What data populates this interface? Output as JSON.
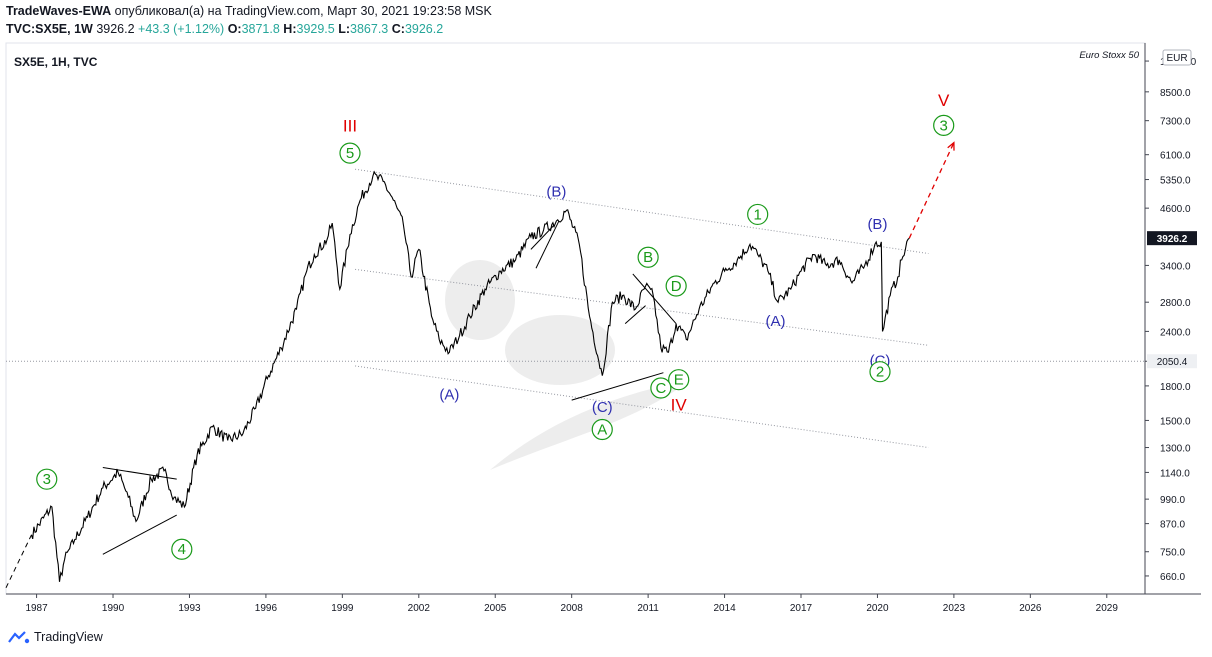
{
  "header": {
    "author": "TradeWaves-EWA",
    "published_text": "опубликовал(а) на TradingView.com, Март 30, 2021 19:23:58 MSK",
    "symbol": "TVC:SX5E, 1W",
    "last": "3926.2",
    "change": "+43.3 (+1.12%)",
    "o_label": "O:",
    "o_value": "3871.8",
    "h_label": "H:",
    "h_value": "3929.5",
    "l_label": "L:",
    "l_value": "3867.3",
    "c_label": "C:",
    "c_value": "3926.2"
  },
  "footer": {
    "brand": "TradingView"
  },
  "colors": {
    "up": "#26a69a",
    "wave_red": "#e00000",
    "wave_green": "#1a9a1a",
    "wave_blue": "#3030b0"
  },
  "chart_data": {
    "type": "line",
    "symbol_label": "SX5E, 1H, TVC",
    "index_name": "Euro Stoxx 50",
    "currency": "EUR",
    "y_scale": "log",
    "ylim": [
      600,
      11000
    ],
    "xlim": [
      1985.8,
      2030.5
    ],
    "y_ticks": [
      "660.0",
      "750.0",
      "870.0",
      "990.0",
      "1140.0",
      "1300.0",
      "1500.0",
      "1800.0",
      "2050.0",
      "2400.0",
      "2800.0",
      "3400.0",
      "3926.2",
      "4600.0",
      "5350.0",
      "6100.0",
      "7300.0",
      "8500.0",
      "10000.0"
    ],
    "x_ticks": [
      "1987",
      "1990",
      "1993",
      "1996",
      "1999",
      "2002",
      "2005",
      "2008",
      "2011",
      "2014",
      "2017",
      "2020",
      "2023",
      "2026",
      "2029"
    ],
    "price_labels": [
      {
        "value": 3926.2,
        "text": "3926.2",
        "style": "dark"
      },
      {
        "value": 2050.4,
        "text": "2050.4",
        "style": "light"
      }
    ],
    "series": [
      {
        "x": [
          1986.8,
          1987.6,
          1987.9,
          1988.1,
          1988.5,
          1989.0,
          1989.6,
          1990.2,
          1990.6,
          1990.9,
          1991.5,
          1992.0,
          1992.4,
          1992.8,
          1993.3,
          1993.9,
          1994.5,
          1995.1,
          1995.6,
          1996.1,
          1996.6,
          1997.2,
          1997.6,
          1997.9,
          1998.4,
          1998.6,
          1998.9,
          1999.3,
          1999.7,
          2000.2,
          2000.6,
          2001.0,
          2001.4,
          2001.7,
          2002.0,
          2002.5,
          2002.8,
          2003.2,
          2003.6,
          2004.0,
          2004.6,
          2005.2,
          2005.8,
          2006.4,
          2006.9,
          2007.4,
          2007.8,
          2008.3,
          2008.7,
          2009.2,
          2009.6,
          2010.0,
          2010.5,
          2010.9,
          2011.2,
          2011.5,
          2011.8,
          2012.1,
          2012.5,
          2013.0,
          2013.6,
          2014.0,
          2014.5,
          2015.0,
          2015.3,
          2015.7,
          2016.1,
          2016.6,
          2017.0,
          2017.5,
          2018.0,
          2018.5,
          2019.0,
          2019.5,
          2019.9,
          2020.15,
          2020.2,
          2020.5,
          2020.8,
          2020.95,
          2021.25
        ],
        "values": [
          820,
          950,
          640,
          720,
          800,
          900,
          1050,
          1140,
          1000,
          880,
          1100,
          1150,
          1000,
          950,
          1250,
          1450,
          1350,
          1400,
          1600,
          1900,
          2200,
          2700,
          3300,
          3600,
          3900,
          4250,
          3000,
          4000,
          4800,
          5450,
          5300,
          4800,
          4200,
          3200,
          3700,
          2600,
          2300,
          2150,
          2350,
          2600,
          3000,
          3300,
          3500,
          3950,
          4100,
          4300,
          4550,
          3800,
          2600,
          1900,
          2800,
          2900,
          2700,
          3050,
          2900,
          2200,
          2150,
          2500,
          2300,
          2700,
          3100,
          3300,
          3500,
          3800,
          3600,
          3300,
          2800,
          3000,
          3300,
          3600,
          3400,
          3500,
          3100,
          3400,
          3800,
          3850,
          2400,
          2900,
          3200,
          3500,
          3926
        ]
      }
    ],
    "channel_lines": [
      {
        "x": [
          1999.5,
          2022.0
        ],
        "y": [
          5650,
          3620
        ]
      },
      {
        "x": [
          1999.5,
          2022.0
        ],
        "y": [
          3330,
          2230
        ]
      },
      {
        "x": [
          1999.5,
          2022.0
        ],
        "y": [
          2000,
          1300
        ]
      }
    ],
    "trend_lines": [
      {
        "x": [
          1989.6,
          1992.5
        ],
        "y": [
          1170,
          1100
        ]
      },
      {
        "x": [
          1989.6,
          1992.5
        ],
        "y": [
          740,
          910
        ]
      },
      {
        "x": [
          2006.4,
          2007.3
        ],
        "y": [
          3700,
          4200
        ]
      },
      {
        "x": [
          2006.6,
          2007.5
        ],
        "y": [
          3350,
          4300
        ]
      },
      {
        "x": [
          2008.0,
          2011.6
        ],
        "y": [
          1670,
          1930
        ]
      },
      {
        "x": [
          2010.4,
          2012.1
        ],
        "y": [
          3250,
          2500
        ]
      },
      {
        "x": [
          2010.1,
          2010.9
        ],
        "y": [
          2500,
          2750
        ]
      }
    ],
    "projection": {
      "x": [
        2021.25,
        2023.0
      ],
      "y": [
        3926,
        6500
      ]
    },
    "wave_labels": [
      {
        "text": "III",
        "x": 1999.3,
        "y": 7120,
        "color": "red",
        "circled": false
      },
      {
        "text": "5",
        "x": 1999.3,
        "y": 6150,
        "color": "green",
        "circled": true
      },
      {
        "text": "(B)",
        "x": 2007.4,
        "y": 5050,
        "color": "blue",
        "circled": false
      },
      {
        "text": "1",
        "x": 2015.3,
        "y": 4450,
        "color": "green",
        "circled": true
      },
      {
        "text": "(B)",
        "x": 2020.0,
        "y": 4250,
        "color": "blue",
        "circled": false
      },
      {
        "text": "V",
        "x": 2022.6,
        "y": 8150,
        "color": "red",
        "circled": false
      },
      {
        "text": "3",
        "x": 2022.6,
        "y": 7120,
        "color": "green",
        "circled": true
      },
      {
        "text": "B",
        "x": 2011.0,
        "y": 3550,
        "color": "green",
        "circled": true
      },
      {
        "text": "D",
        "x": 2012.1,
        "y": 3050,
        "color": "green",
        "circled": true
      },
      {
        "text": "(A)",
        "x": 2016.0,
        "y": 2550,
        "color": "blue",
        "circled": false
      },
      {
        "text": "(C)",
        "x": 2020.1,
        "y": 2070,
        "color": "blue",
        "circled": false
      },
      {
        "text": "2",
        "x": 2020.1,
        "y": 1940,
        "color": "green",
        "circled": true
      },
      {
        "text": "(A)",
        "x": 2003.2,
        "y": 1730,
        "color": "blue",
        "circled": false
      },
      {
        "text": "E",
        "x": 2012.2,
        "y": 1860,
        "color": "green",
        "circled": true
      },
      {
        "text": "C",
        "x": 2011.5,
        "y": 1780,
        "color": "green",
        "circled": true
      },
      {
        "text": "IV",
        "x": 2012.2,
        "y": 1630,
        "color": "red",
        "circled": false
      },
      {
        "text": "(C)",
        "x": 2009.2,
        "y": 1620,
        "color": "blue",
        "circled": false
      },
      {
        "text": "A",
        "x": 2009.2,
        "y": 1430,
        "color": "green",
        "circled": true
      },
      {
        "text": "3",
        "x": 1987.4,
        "y": 1100,
        "color": "green",
        "circled": true
      },
      {
        "text": "4",
        "x": 1992.7,
        "y": 760,
        "color": "green",
        "circled": true
      }
    ]
  }
}
